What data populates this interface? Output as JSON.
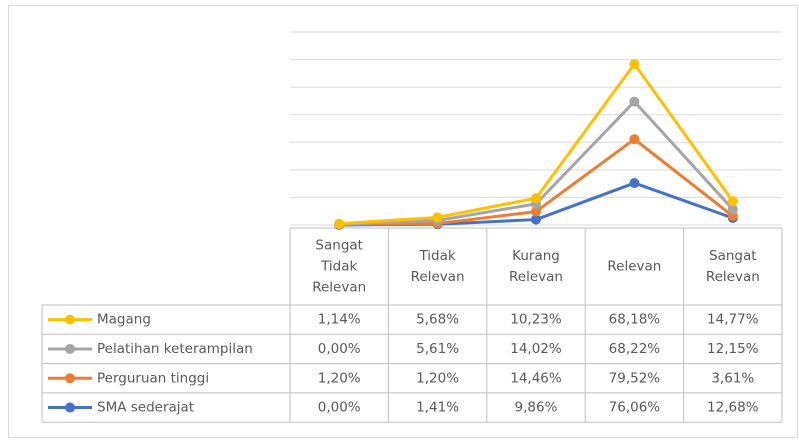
{
  "chart_data": {
    "type": "line",
    "stacked": true,
    "categories": [
      "Sangat Tidak Relevan",
      "Tidak Relevan",
      "Kurang Relevan",
      "Relevan",
      "Sangat Relevan"
    ],
    "series": [
      {
        "name": "Magang",
        "color": "#FFC000",
        "values": [
          1.14,
          5.68,
          10.23,
          68.18,
          14.77
        ],
        "value_labels": [
          "1,14%",
          "5,68%",
          "10,23%",
          "68,18%",
          "14,77%"
        ]
      },
      {
        "name": "Pelatihan keterampilan",
        "color": "#A5A5A5",
        "values": [
          0.0,
          5.61,
          14.02,
          68.22,
          12.15
        ],
        "value_labels": [
          "0,00%",
          "5,61%",
          "14,02%",
          "68,22%",
          "12,15%"
        ]
      },
      {
        "name": "Perguruan tinggi",
        "color": "#ED7D31",
        "values": [
          1.2,
          1.2,
          14.46,
          79.52,
          3.61
        ],
        "value_labels": [
          "1,20%",
          "1,20%",
          "14,46%",
          "79,52%",
          "3,61%"
        ]
      },
      {
        "name": "SMA sederajat",
        "color": "#4472C4",
        "values": [
          0.0,
          1.41,
          9.86,
          76.06,
          12.68
        ],
        "value_labels": [
          "0,00%",
          "1,41%",
          "9,86%",
          "76,06%",
          "12,68%"
        ]
      }
    ],
    "ylim": [
      0,
      350
    ],
    "yticks": [
      0,
      50,
      100,
      150,
      200,
      250,
      300,
      350
    ],
    "grid": true
  }
}
